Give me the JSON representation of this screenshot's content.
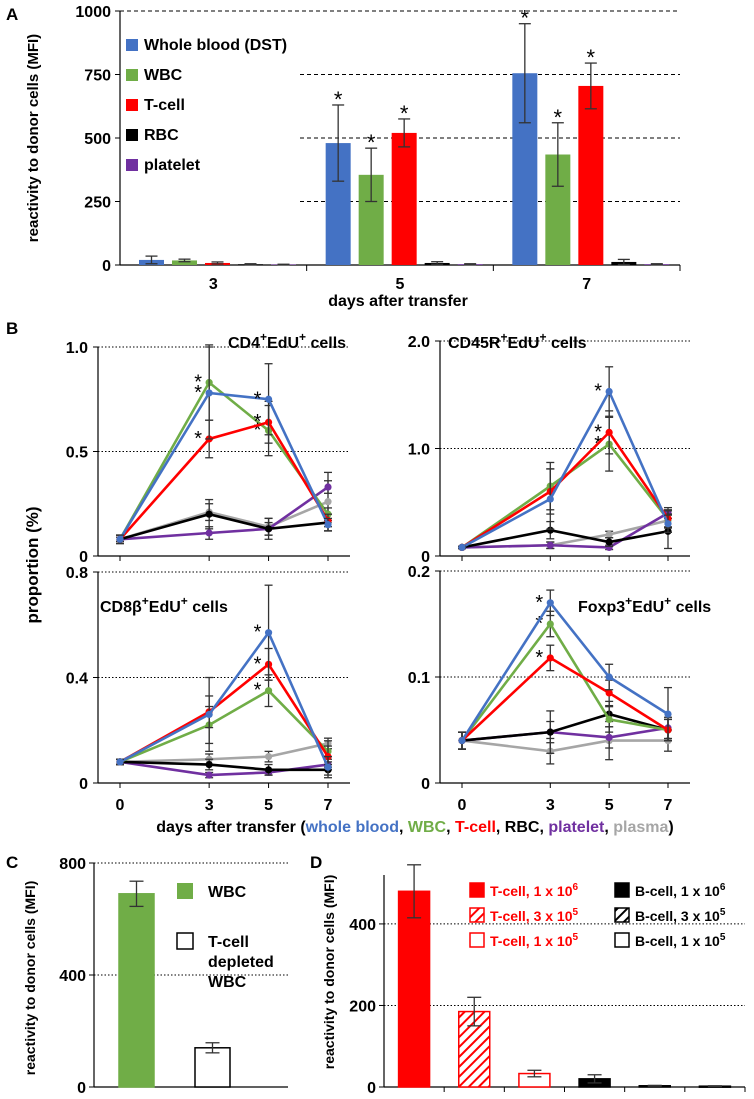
{
  "colors": {
    "whole_blood": "#4472c4",
    "wbc": "#70ad47",
    "tcell": "#ff0000",
    "rbc": "#000000",
    "platelet": "#7030a0",
    "plasma": "#a6a6a6"
  },
  "panels": {
    "A": "A",
    "B": "B",
    "C": "C",
    "D": "D"
  },
  "texts": {
    "b_ylabel": "proportion (%)",
    "b_xlabel_prefix": "days after transfer (",
    "b_xlabel_items": [
      "whole blood",
      "WBC",
      "T-cell",
      "RBC",
      "platelet",
      "plasma"
    ],
    "b_xlabel_sep": ", ",
    "b_xlabel_suffix": ")",
    "star": "*",
    "sup_plus": "+",
    "sub_titles": {
      "cd4": {
        "main": "CD4",
        "rest": "EdU",
        "tail": " cells"
      },
      "cd45r": {
        "main": "CD45R",
        "rest": "EdU",
        "tail": " cells"
      },
      "cd8b": {
        "main": "CD8β",
        "rest": "EdU",
        "tail": " cells"
      },
      "foxp3": {
        "main": "Foxp3",
        "rest": "EdU",
        "tail": " cells"
      }
    }
  },
  "chart_data": [
    {
      "id": "A",
      "type": "bar",
      "ylabel": "reactivity to donor cells (MFI)",
      "xlabel": "days after transfer",
      "categories": [
        "3",
        "5",
        "7"
      ],
      "ylim": [
        0,
        1000
      ],
      "yticks": [
        0,
        250,
        500,
        750,
        1000
      ],
      "legend": [
        "Whole blood (DST)",
        "WBC",
        "T-cell",
        "RBC",
        "platelet"
      ],
      "series": [
        {
          "name": "Whole blood (DST)",
          "color_key": "whole_blood",
          "values": [
            20,
            480,
            755
          ],
          "errors": [
            15,
            150,
            195
          ],
          "star": [
            false,
            true,
            true
          ]
        },
        {
          "name": "WBC",
          "color_key": "wbc",
          "values": [
            18,
            355,
            435
          ],
          "errors": [
            5,
            105,
            125
          ],
          "star": [
            false,
            true,
            true
          ]
        },
        {
          "name": "T-cell",
          "color_key": "tcell",
          "values": [
            8,
            520,
            705
          ],
          "errors": [
            4,
            55,
            90
          ],
          "star": [
            false,
            true,
            true
          ]
        },
        {
          "name": "RBC",
          "color_key": "rbc",
          "values": [
            3,
            8,
            12
          ],
          "errors": [
            2,
            5,
            10
          ],
          "star": [
            false,
            false,
            false
          ]
        },
        {
          "name": "platelet",
          "color_key": "platelet",
          "values": [
            2,
            3,
            3
          ],
          "errors": [
            1,
            2,
            2
          ],
          "star": [
            false,
            false,
            false
          ]
        }
      ]
    },
    {
      "id": "B1",
      "type": "line",
      "title_key": "cd4",
      "x": [
        0,
        3,
        5,
        7
      ],
      "ylim": [
        0,
        1.0
      ],
      "yticks": [
        0,
        0.5,
        1.0
      ],
      "ytick_labels": [
        "0",
        "0.5",
        "1.0"
      ],
      "series": [
        {
          "name": "whole blood",
          "color_key": "whole_blood",
          "values": [
            0.08,
            0.78,
            0.75,
            0.15
          ],
          "errors": [
            0.02,
            0.22,
            0.17,
            0.03
          ],
          "star": [
            false,
            true,
            true,
            false
          ]
        },
        {
          "name": "WBC",
          "color_key": "wbc",
          "values": [
            0.08,
            0.83,
            0.6,
            0.2
          ],
          "errors": [
            0.02,
            0.18,
            0.12,
            0.03
          ],
          "star": [
            false,
            true,
            true,
            false
          ]
        },
        {
          "name": "T-cell",
          "color_key": "tcell",
          "values": [
            0.08,
            0.56,
            0.64,
            0.17
          ],
          "errors": [
            0.02,
            0.09,
            0.1,
            0.03
          ],
          "star": [
            false,
            true,
            true,
            false
          ]
        },
        {
          "name": "RBC",
          "color_key": "rbc",
          "values": [
            0.08,
            0.2,
            0.13,
            0.16
          ],
          "errors": [
            0.02,
            0.07,
            0.05,
            0.04
          ],
          "star": [
            false,
            false,
            false,
            false
          ]
        },
        {
          "name": "platelet",
          "color_key": "platelet",
          "values": [
            0.08,
            0.11,
            0.13,
            0.33
          ],
          "errors": [
            0.01,
            0.03,
            0.03,
            0.03
          ],
          "star": [
            false,
            false,
            false,
            false
          ]
        },
        {
          "name": "plasma",
          "color_key": "plasma",
          "values": [
            0.08,
            0.21,
            0.14,
            0.26
          ],
          "errors": [
            0.02,
            0.04,
            0.04,
            0.14
          ],
          "star": [
            false,
            false,
            false,
            false
          ]
        }
      ]
    },
    {
      "id": "B2",
      "type": "line",
      "title_key": "cd45r",
      "x": [
        0,
        3,
        5,
        7
      ],
      "ylim": [
        0,
        2.0
      ],
      "yticks": [
        0,
        1.0,
        2.0
      ],
      "ytick_labels": [
        "0",
        "1.0",
        "2.0"
      ],
      "series": [
        {
          "name": "whole blood",
          "color_key": "whole_blood",
          "values": [
            0.08,
            0.53,
            1.53,
            0.3
          ],
          "errors": [
            0.01,
            0.28,
            0.23,
            0.08
          ],
          "star": [
            false,
            false,
            true,
            false
          ]
        },
        {
          "name": "WBC",
          "color_key": "wbc",
          "values": [
            0.08,
            0.65,
            1.04,
            0.34
          ],
          "errors": [
            0.01,
            0.22,
            0.25,
            0.08
          ],
          "star": [
            false,
            false,
            true,
            false
          ]
        },
        {
          "name": "T-cell",
          "color_key": "tcell",
          "values": [
            0.08,
            0.6,
            1.15,
            0.35
          ],
          "errors": [
            0.01,
            0.21,
            0.2,
            0.08
          ],
          "star": [
            false,
            false,
            true,
            false
          ]
        },
        {
          "name": "RBC",
          "color_key": "rbc",
          "values": [
            0.08,
            0.24,
            0.13,
            0.23
          ],
          "errors": [
            0.01,
            0.08,
            0.04,
            0.16
          ],
          "star": [
            false,
            false,
            false,
            false
          ]
        },
        {
          "name": "platelet",
          "color_key": "platelet",
          "values": [
            0.08,
            0.1,
            0.08,
            0.4
          ],
          "errors": [
            0.01,
            0.03,
            0.02,
            0.05
          ],
          "star": [
            false,
            false,
            false,
            false
          ]
        },
        {
          "name": "plasma",
          "color_key": "plasma",
          "values": [
            0.08,
            0.1,
            0.2,
            0.33
          ],
          "errors": [
            0.01,
            0.03,
            0.03,
            0.06
          ],
          "star": [
            false,
            false,
            false,
            false
          ]
        }
      ]
    },
    {
      "id": "B3",
      "type": "line",
      "title_key": "cd8b",
      "x": [
        0,
        3,
        5,
        7
      ],
      "ylim": [
        0,
        0.8
      ],
      "yticks": [
        0,
        0.4,
        0.8
      ],
      "ytick_labels": [
        "0",
        "0.4",
        "0.8"
      ],
      "series": [
        {
          "name": "whole blood",
          "color_key": "whole_blood",
          "values": [
            0.08,
            0.26,
            0.57,
            0.06
          ],
          "errors": [
            0.01,
            0.14,
            0.18,
            0.04
          ],
          "star": [
            false,
            false,
            true,
            false
          ]
        },
        {
          "name": "WBC",
          "color_key": "wbc",
          "values": [
            0.08,
            0.22,
            0.35,
            0.12
          ],
          "errors": [
            0.01,
            0.07,
            0.06,
            0.04
          ],
          "star": [
            false,
            false,
            true,
            false
          ]
        },
        {
          "name": "T-cell",
          "color_key": "tcell",
          "values": [
            0.08,
            0.27,
            0.45,
            0.1
          ],
          "errors": [
            0.01,
            0.06,
            0.06,
            0.04
          ],
          "star": [
            false,
            false,
            true,
            false
          ]
        },
        {
          "name": "RBC",
          "color_key": "rbc",
          "values": [
            0.08,
            0.07,
            0.05,
            0.05
          ],
          "errors": [
            0.01,
            0.02,
            0.02,
            0.02
          ],
          "star": [
            false,
            false,
            false,
            false
          ]
        },
        {
          "name": "platelet",
          "color_key": "platelet",
          "values": [
            0.08,
            0.03,
            0.04,
            0.07
          ],
          "errors": [
            0.01,
            0.01,
            0.01,
            0.02
          ],
          "star": [
            false,
            false,
            false,
            false
          ]
        },
        {
          "name": "plasma",
          "color_key": "plasma",
          "values": [
            0.08,
            0.09,
            0.1,
            0.15
          ],
          "errors": [
            0.01,
            0.02,
            0.02,
            0.02
          ],
          "star": [
            false,
            false,
            false,
            false
          ]
        }
      ]
    },
    {
      "id": "B4",
      "type": "line",
      "title_key": "foxp3",
      "x": [
        0,
        3,
        5,
        7
      ],
      "ylim": [
        0,
        0.2
      ],
      "yticks": [
        0,
        0.1,
        0.2
      ],
      "ytick_labels": [
        "0",
        "0.1",
        "0.2"
      ],
      "series": [
        {
          "name": "whole blood",
          "color_key": "whole_blood",
          "values": [
            0.04,
            0.17,
            0.1,
            0.065
          ],
          "errors": [
            0.008,
            0.012,
            0.012,
            0.025
          ],
          "star": [
            false,
            true,
            false,
            false
          ]
        },
        {
          "name": "WBC",
          "color_key": "wbc",
          "values": [
            0.04,
            0.15,
            0.06,
            0.05
          ],
          "errors": [
            0.008,
            0.012,
            0.012,
            0.01
          ],
          "star": [
            false,
            true,
            false,
            false
          ]
        },
        {
          "name": "T-cell",
          "color_key": "tcell",
          "values": [
            0.04,
            0.118,
            0.085,
            0.05
          ],
          "errors": [
            0.008,
            0.012,
            0.012,
            0.01
          ],
          "star": [
            false,
            true,
            false,
            false
          ]
        },
        {
          "name": "RBC",
          "color_key": "rbc",
          "values": [
            0.04,
            0.048,
            0.065,
            0.05
          ],
          "errors": [
            0.008,
            0.02,
            0.012,
            0.01
          ],
          "star": [
            false,
            false,
            false,
            false
          ]
        },
        {
          "name": "platelet",
          "color_key": "platelet",
          "values": [
            0.04,
            0.048,
            0.043,
            0.052
          ],
          "errors": [
            0.008,
            0.01,
            0.01,
            0.01
          ],
          "star": [
            false,
            false,
            false,
            false
          ]
        },
        {
          "name": "plasma",
          "color_key": "plasma",
          "values": [
            0.04,
            0.03,
            0.04,
            0.04
          ],
          "errors": [
            0.008,
            0.012,
            0.018,
            0.01
          ],
          "star": [
            false,
            false,
            false,
            false
          ]
        }
      ]
    },
    {
      "id": "C",
      "type": "bar",
      "ylabel": "reactivity to donor cells (MFI)",
      "ylim": [
        0,
        800
      ],
      "yticks": [
        0,
        400,
        800
      ],
      "categories": [
        "WBC",
        "T-cell depleted WBC"
      ],
      "legend_lines": [
        [
          "WBC"
        ],
        [
          "T-cell",
          "depleted",
          "WBC"
        ]
      ],
      "values": [
        690,
        140
      ],
      "errors": [
        45,
        18
      ],
      "styles": [
        "solid-green",
        "hollow-black"
      ]
    },
    {
      "id": "D",
      "type": "bar",
      "ylabel": "reactivity to donor cells (MFI)",
      "ylim": [
        0,
        520
      ],
      "yticks": [
        0,
        200,
        400
      ],
      "legend_base": [
        "T-cell, 1 x 10",
        "T-cell, 3 x 10",
        "T-cell, 1 x 10",
        "B-cell, 1 x 10",
        "B-cell, 3 x 10",
        "B-cell, 1 x 10"
      ],
      "legend_exp": [
        "6",
        "5",
        "5",
        "6",
        "5",
        "5"
      ],
      "categories": [
        "T-cell, 1 x 10^6",
        "T-cell, 3 x 10^5",
        "T-cell, 1 x 10^5",
        "B-cell, 1 x 10^6",
        "B-cell, 3 x 10^5",
        "B-cell, 1 x 10^5"
      ],
      "values": [
        480,
        185,
        33,
        20,
        3,
        2
      ],
      "errors": [
        65,
        35,
        8,
        10,
        1,
        1
      ],
      "styles": [
        "solid-red",
        "hatch-red",
        "hollow-red",
        "solid-black",
        "hatch-black",
        "hollow-black"
      ]
    }
  ]
}
